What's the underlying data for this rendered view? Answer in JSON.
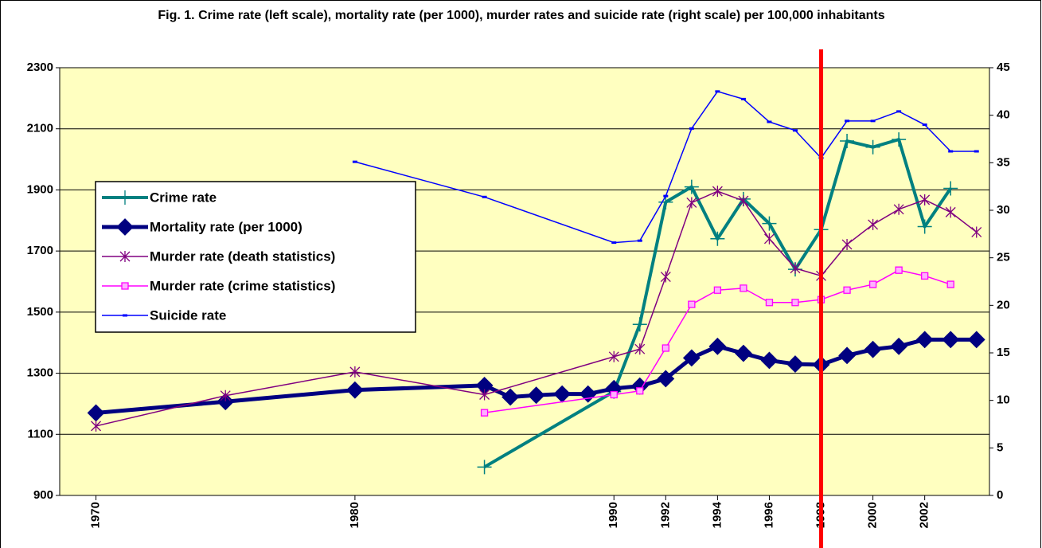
{
  "chart_data": {
    "type": "line",
    "title": "Fig. 1. Crime rate (left scale), mortality rate (per 1000), murder rates and suicide rate (right scale) per 100,000 inhabitants",
    "xlim": [
      1968.6,
      2004.5
    ],
    "xticks": [
      1970,
      1980,
      1990,
      1992,
      1994,
      1996,
      1998,
      2000,
      2002
    ],
    "ylim": [
      900,
      2300
    ],
    "yticks": [
      900,
      1100,
      1300,
      1500,
      1700,
      1900,
      2100,
      2300
    ],
    "y2lim": [
      0,
      45
    ],
    "y2ticks": [
      0,
      5,
      10,
      15,
      20,
      25,
      30,
      35,
      40,
      45
    ],
    "grid": true,
    "legend": "left",
    "vertical_line": {
      "x": 1998,
      "color": "#ff0000"
    },
    "series": [
      {
        "name": "Crime rate",
        "color": "#008080",
        "marker": "plus",
        "width": 4,
        "x": [
          1985,
          1990,
          1991,
          1992,
          1993,
          1994,
          1995,
          1996,
          1997,
          1998,
          1999,
          2000,
          2001,
          2002,
          2003
        ],
        "values": [
          993,
          1240,
          1460,
          1860,
          1910,
          1740,
          1870,
          1790,
          1640,
          1770,
          2060,
          2040,
          2065,
          1780,
          1905
        ]
      },
      {
        "name": "Mortality rate (per 1000)",
        "color": "#000080",
        "marker": "diamond",
        "width": 5,
        "x": [
          1970,
          1975,
          1980,
          1985,
          1986,
          1987,
          1988,
          1989,
          1990,
          1991,
          1992,
          1993,
          1994,
          1995,
          1996,
          1997,
          1998,
          1999,
          2000,
          2001,
          2002,
          2003,
          2004
        ],
        "values": [
          1170,
          1207,
          1245,
          1260,
          1222,
          1228,
          1232,
          1232,
          1250,
          1258,
          1282,
          1350,
          1388,
          1365,
          1342,
          1330,
          1328,
          1358,
          1378,
          1388,
          1410,
          1410,
          1410
        ]
      },
      {
        "name": "Murder rate (death statistics)",
        "color": "#800080",
        "marker": "star",
        "width": 1.5,
        "axis": "y2",
        "x": [
          1970,
          1975,
          1980,
          1985,
          1990,
          1991,
          1992,
          1993,
          1994,
          1995,
          1996,
          1997,
          1998,
          1999,
          2000,
          2001,
          2002,
          2003,
          2004
        ],
        "values": [
          7.3,
          10.5,
          13,
          10.6,
          14.6,
          15.4,
          23,
          30.8,
          32,
          31,
          27,
          23.9,
          23.1,
          26.4,
          28.5,
          30.1,
          31.1,
          29.8,
          27.7
        ]
      },
      {
        "name": "Murder rate (crime statistics)",
        "color": "#ff00ff",
        "marker": "square",
        "width": 1.5,
        "axis": "y2",
        "x": [
          1985,
          1990,
          1991,
          1992,
          1993,
          1994,
          1995,
          1996,
          1997,
          1998,
          1999,
          2000,
          2001,
          2002,
          2003
        ],
        "values": [
          8.7,
          10.6,
          11,
          15.5,
          20.1,
          21.6,
          21.8,
          20.3,
          20.3,
          20.6,
          21.6,
          22.2,
          23.7,
          23.1,
          22.2
        ]
      },
      {
        "name": "Suicide rate",
        "color": "#0000ff",
        "marker": "dash",
        "width": 1.5,
        "axis": "y2",
        "x": [
          1980,
          1985,
          1990,
          1991,
          1992,
          1993,
          1994,
          1995,
          1996,
          1997,
          1998,
          1999,
          2000,
          2001,
          2002,
          2003,
          2004
        ],
        "values": [
          35.1,
          31.4,
          26.6,
          26.8,
          31.5,
          38.6,
          42.5,
          41.7,
          39.3,
          38.4,
          35.5,
          39.4,
          39.4,
          40.4,
          39,
          36.2,
          36.2
        ]
      }
    ]
  }
}
